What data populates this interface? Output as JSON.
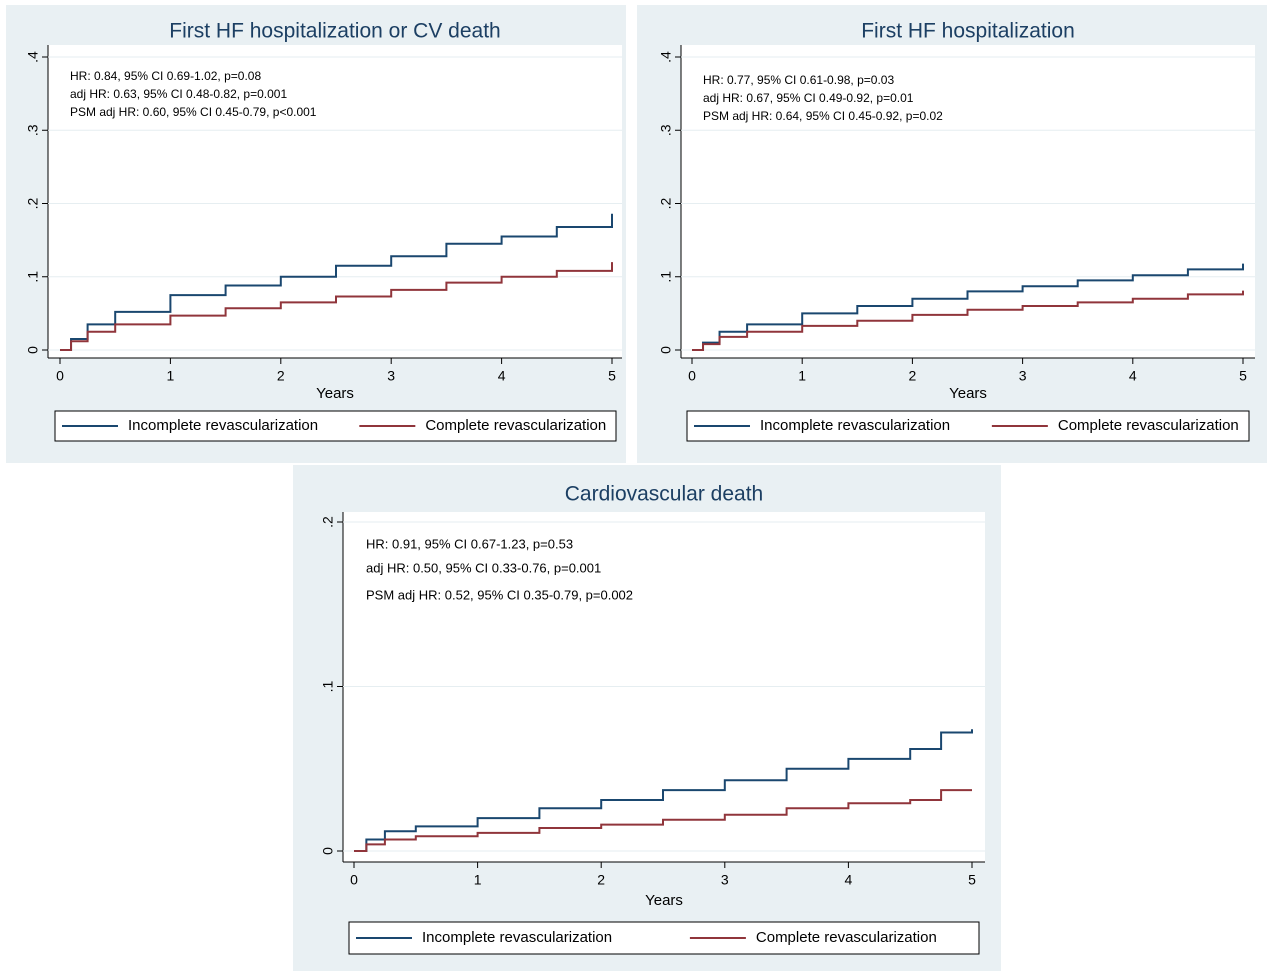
{
  "chart_data": [
    {
      "type": "line",
      "title": "First HF hospitalization or CV death",
      "xlabel": "Years",
      "annotations": [
        "HR: 0.84, 95% CI 0.69-1.02, p=0.08",
        "adj HR: 0.63, 95% CI 0.48-0.82, p=0.001",
        "PSM adj HR: 0.60, 95% CI 0.45-0.79, p<0.001"
      ],
      "x": [
        0,
        0.1,
        0.25,
        0.5,
        1,
        1.5,
        2,
        2.5,
        3,
        3.5,
        4,
        4.5,
        5
      ],
      "series": [
        {
          "name": "Incomplete revascularization",
          "color": "#1a476f",
          "values": [
            0,
            0.015,
            0.035,
            0.052,
            0.075,
            0.088,
            0.1,
            0.115,
            0.128,
            0.145,
            0.155,
            0.168,
            0.186
          ]
        },
        {
          "name": "Complete revascularization",
          "color": "#90353b",
          "values": [
            0,
            0.012,
            0.025,
            0.035,
            0.047,
            0.057,
            0.065,
            0.073,
            0.082,
            0.092,
            0.1,
            0.108,
            0.12
          ]
        }
      ],
      "xlim": [
        0,
        5
      ],
      "xticks": [
        0,
        1,
        2,
        3,
        4,
        5
      ],
      "ylim": [
        0,
        0.4
      ],
      "yticks": [
        0,
        {
          "value": 0.1,
          "label": ".1"
        },
        {
          "value": 0.2,
          "label": ".2"
        },
        {
          "value": 0.3,
          "label": ".3"
        },
        {
          "value": 0.4,
          "label": ".4"
        }
      ],
      "grid": true,
      "legend": "bottom"
    },
    {
      "type": "line",
      "title": "First HF hospitalization",
      "xlabel": "Years",
      "annotations": [
        "HR: 0.77, 95% CI 0.61-0.98, p=0.03",
        "adj HR: 0.67, 95% CI 0.49-0.92, p=0.01",
        "PSM adj HR: 0.64, 95% CI 0.45-0.92, p=0.02"
      ],
      "x": [
        0,
        0.1,
        0.25,
        0.5,
        1,
        1.5,
        2,
        2.5,
        3,
        3.5,
        4,
        4.5,
        5
      ],
      "series": [
        {
          "name": "Incomplete revascularization",
          "color": "#1a476f",
          "values": [
            0,
            0.01,
            0.025,
            0.035,
            0.05,
            0.06,
            0.07,
            0.08,
            0.087,
            0.095,
            0.102,
            0.11,
            0.118
          ]
        },
        {
          "name": "Complete revascularization",
          "color": "#90353b",
          "values": [
            0,
            0.008,
            0.018,
            0.025,
            0.033,
            0.04,
            0.048,
            0.055,
            0.06,
            0.065,
            0.07,
            0.076,
            0.081
          ]
        }
      ],
      "xlim": [
        0,
        5
      ],
      "xticks": [
        0,
        1,
        2,
        3,
        4,
        5
      ],
      "ylim": [
        0,
        0.4
      ],
      "yticks": [
        0,
        {
          "value": 0.1,
          "label": ".1"
        },
        {
          "value": 0.2,
          "label": ".2"
        },
        {
          "value": 0.3,
          "label": ".3"
        },
        {
          "value": 0.4,
          "label": ".4"
        }
      ],
      "grid": true,
      "legend": "bottom"
    },
    {
      "type": "line",
      "title": "Cardiovascular death",
      "xlabel": "Years",
      "annotations": [
        "HR: 0.91, 95% CI 0.67-1.23, p=0.53",
        "adj HR: 0.50, 95% CI 0.33-0.76, p=0.001",
        "PSM adj HR: 0.52, 95% CI 0.35-0.79, p=0.002"
      ],
      "x": [
        0,
        0.1,
        0.25,
        0.5,
        1,
        1.5,
        2,
        2.5,
        3,
        3.5,
        4,
        4.5,
        4.75,
        5
      ],
      "series": [
        {
          "name": "Incomplete revascularization",
          "color": "#1a476f",
          "values": [
            0,
            0.007,
            0.012,
            0.015,
            0.02,
            0.026,
            0.031,
            0.037,
            0.043,
            0.05,
            0.056,
            0.062,
            0.072,
            0.074
          ]
        },
        {
          "name": "Complete revascularization",
          "color": "#90353b",
          "values": [
            0,
            0.004,
            0.007,
            0.009,
            0.011,
            0.014,
            0.016,
            0.019,
            0.022,
            0.026,
            0.029,
            0.031,
            0.037,
            0.037
          ]
        }
      ],
      "xlim": [
        0,
        5
      ],
      "xticks": [
        0,
        1,
        2,
        3,
        4,
        5
      ],
      "ylim": [
        0,
        0.2
      ],
      "yticks": [
        0,
        {
          "value": 0.1,
          "label": ".1"
        },
        {
          "value": 0.2,
          "label": ".2"
        }
      ],
      "grid": true,
      "legend": "bottom"
    }
  ]
}
